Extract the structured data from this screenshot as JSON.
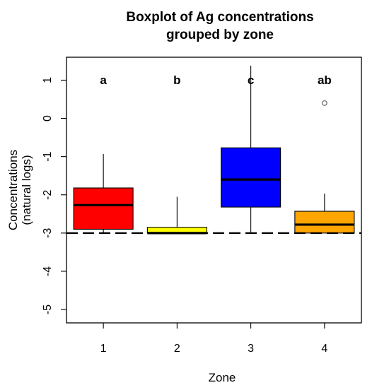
{
  "chart_data": {
    "type": "boxplot",
    "title_lines": [
      "Boxplot of Ag concentrations",
      "grouped by zone"
    ],
    "xlabel": "Zone",
    "ylabel_lines": [
      "Concentrations",
      "(natural logs)"
    ],
    "categories": [
      "1",
      "2",
      "3",
      "4"
    ],
    "y_ticks": [
      1,
      0,
      -1,
      -2,
      -3,
      -4,
      -5
    ],
    "ylim": [
      -5.35,
      1.6
    ],
    "reference_line": {
      "y": -3.0,
      "style": "dashed"
    },
    "boxes": [
      {
        "zone": "1",
        "lower_whisker": -3.0,
        "q1": -2.9,
        "median": -2.27,
        "q3": -1.82,
        "upper_whisker": -0.93,
        "outliers": [],
        "color": "#ff0000",
        "group_letter": "a"
      },
      {
        "zone": "2",
        "lower_whisker": -3.0,
        "q1": -3.0,
        "median": -3.0,
        "q3": -2.85,
        "upper_whisker": -2.05,
        "outliers": [],
        "color": "#ffff00",
        "group_letter": "b"
      },
      {
        "zone": "3",
        "lower_whisker": -3.0,
        "q1": -2.32,
        "median": -1.6,
        "q3": -0.77,
        "upper_whisker": 1.38,
        "outliers": [],
        "color": "#0000ff",
        "group_letter": "c"
      },
      {
        "zone": "4",
        "lower_whisker": -3.0,
        "q1": -3.0,
        "median": -2.78,
        "q3": -2.43,
        "upper_whisker": -1.97,
        "outliers": [
          0.4
        ],
        "color": "#ffa500",
        "group_letter": "ab"
      }
    ]
  }
}
